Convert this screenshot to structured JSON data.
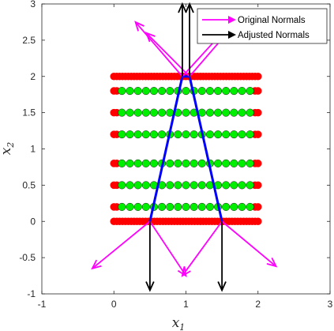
{
  "chart_data": {
    "type": "scatter",
    "xlim": [
      -1,
      3
    ],
    "ylim": [
      -1,
      3
    ],
    "x_ticks": [
      "-1",
      "0",
      "1",
      "2",
      "3"
    ],
    "y_ticks": [
      "-1",
      "-0.5",
      "0",
      "0.5",
      "1",
      "1.5",
      "2",
      "2.5",
      "3"
    ],
    "xlabel_main": "x",
    "xlabel_sub": "1",
    "ylabel_main": "x",
    "ylabel_sub": "2",
    "legend": [
      {
        "label": "Original Normals",
        "color": "#ff00ff"
      },
      {
        "label": "Adjusted Normals",
        "color": "#000000"
      }
    ],
    "colors": {
      "boundary_points": "#ff0000",
      "interior_points": "#00ee00",
      "point_edge": "#1a1a1a",
      "boundary_line": "#0000ff",
      "original_normals": "#ff00ff",
      "adjusted_normals": "#000000"
    },
    "point_rows": [
      {
        "y": 2.0,
        "dense": true
      },
      {
        "y": 1.8,
        "dense": false
      },
      {
        "y": 1.5,
        "dense": false
      },
      {
        "y": 1.2,
        "dense": false
      },
      {
        "y": 0.8,
        "dense": false
      },
      {
        "y": 0.5,
        "dense": false
      },
      {
        "y": 0.2,
        "dense": false
      },
      {
        "y": 0.0,
        "dense": true
      }
    ],
    "boundary_polyline": [
      [
        0.5,
        0
      ],
      [
        0.95,
        2
      ],
      [
        1.05,
        2
      ],
      [
        1.5,
        0
      ]
    ],
    "original_normals": [
      {
        "from": [
          0.95,
          2
        ],
        "to": [
          0.3,
          2.75
        ]
      },
      {
        "from": [
          0.95,
          2
        ],
        "to": [
          1.5,
          2.6
        ]
      },
      {
        "from": [
          1.05,
          2
        ],
        "to": [
          0.45,
          2.6
        ]
      },
      {
        "from": [
          1.05,
          2
        ],
        "to": [
          1.7,
          2.75
        ]
      },
      {
        "from": [
          0.5,
          0
        ],
        "to": [
          -0.3,
          -0.65
        ]
      },
      {
        "from": [
          0.5,
          0
        ],
        "to": [
          1.0,
          -0.75
        ]
      },
      {
        "from": [
          1.5,
          0
        ],
        "to": [
          0.95,
          -0.75
        ]
      },
      {
        "from": [
          1.5,
          0
        ],
        "to": [
          2.25,
          -0.62
        ]
      }
    ],
    "adjusted_normals": [
      {
        "from": [
          0.95,
          2
        ],
        "to": [
          0.95,
          3.0
        ]
      },
      {
        "from": [
          1.05,
          2
        ],
        "to": [
          1.05,
          3.0
        ]
      },
      {
        "from": [
          0.5,
          0
        ],
        "to": [
          0.5,
          -0.95
        ]
      },
      {
        "from": [
          1.5,
          0
        ],
        "to": [
          1.5,
          -0.95
        ]
      }
    ]
  }
}
